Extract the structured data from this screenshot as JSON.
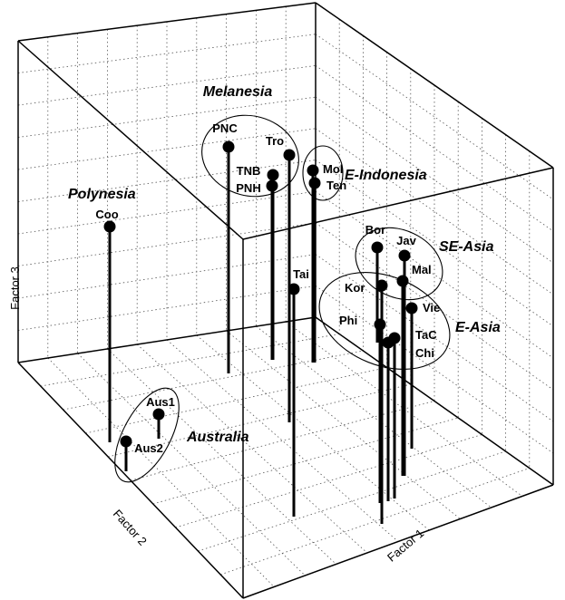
{
  "chart_data": {
    "type": "scatter",
    "subtype": "3d-scatter-with-drop-lines",
    "axes": {
      "x": {
        "label": "Factor 1"
      },
      "y": {
        "label": "Factor 2"
      },
      "z": {
        "label": "Factor 3"
      }
    },
    "grid": true,
    "points": [
      {
        "label": "PNC",
        "group": "Melanesia"
      },
      {
        "label": "Tro",
        "group": "Melanesia"
      },
      {
        "label": "TNB",
        "group": "Melanesia"
      },
      {
        "label": "PNH",
        "group": "Melanesia"
      },
      {
        "label": "Mol",
        "group": "E-Indonesia"
      },
      {
        "label": "Ten",
        "group": "E-Indonesia"
      },
      {
        "label": "Coo",
        "group": "Polynesia"
      },
      {
        "label": "Tai",
        "group": ""
      },
      {
        "label": "Bor",
        "group": "SE-Asia"
      },
      {
        "label": "Jav",
        "group": "SE-Asia"
      },
      {
        "label": "Mal",
        "group": "SE-Asia"
      },
      {
        "label": "Kor",
        "group": "E-Asia"
      },
      {
        "label": "Vie",
        "group": "E-Asia"
      },
      {
        "label": "Phi",
        "group": "E-Asia"
      },
      {
        "label": "TaC",
        "group": "E-Asia"
      },
      {
        "label": "Chi",
        "group": "E-Asia"
      },
      {
        "label": "Aus1",
        "group": "Australia"
      },
      {
        "label": "Aus2",
        "group": "Australia"
      }
    ],
    "groups": [
      "Melanesia",
      "E-Indonesia",
      "Polynesia",
      "SE-Asia",
      "E-Asia",
      "Australia"
    ]
  }
}
